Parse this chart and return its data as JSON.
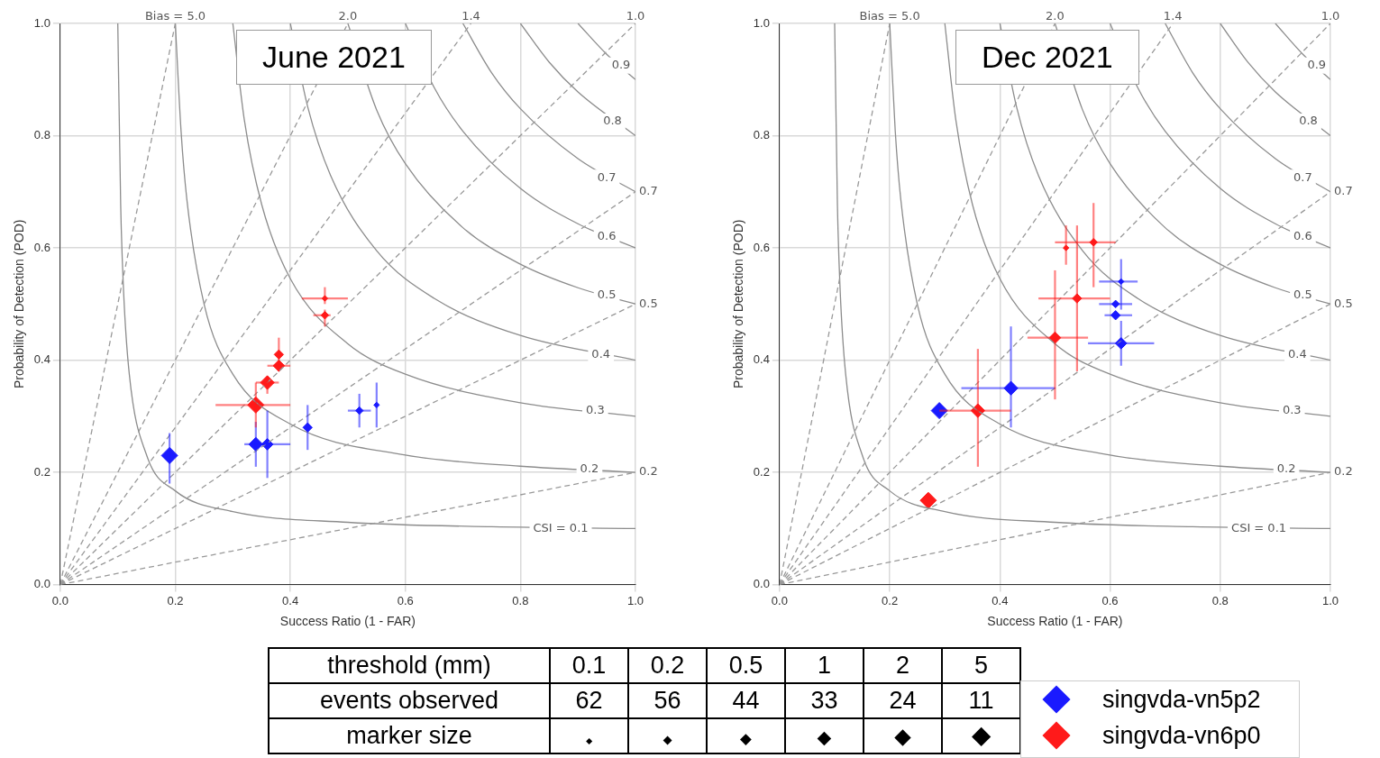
{
  "chart_data": [
    {
      "type": "bubble",
      "title": "June 2021",
      "xlabel": "Success Ratio (1 - FAR)",
      "ylabel": "Probability of Detection (POD)",
      "xlim": [
        0,
        1
      ],
      "ylim": [
        0,
        1
      ],
      "xticks": [
        {
          "value": 0,
          "label": "0.0"
        },
        {
          "value": 0.2,
          "label": "0.2"
        },
        {
          "value": 0.4,
          "label": "0.4"
        },
        {
          "value": 0.6,
          "label": "0.6"
        },
        {
          "value": 0.8,
          "label": "0.8"
        },
        {
          "value": 1,
          "label": "1.0"
        }
      ],
      "yticks": [
        {
          "value": 0,
          "label": "0.0"
        },
        {
          "value": 0.2,
          "label": "0.2"
        },
        {
          "value": 0.4,
          "label": "0.4"
        },
        {
          "value": 0.6,
          "label": "0.6"
        },
        {
          "value": 0.8,
          "label": "0.8"
        },
        {
          "value": 1,
          "label": "1.0"
        }
      ],
      "grid": true,
      "legend": "bottom",
      "series": [
        {
          "type": "line",
          "color": "#999999",
          "line_style": "dashed",
          "x": [
            0,
            1
          ],
          "values": [
            0,
            0.2
          ]
        },
        {
          "type": "line",
          "color": "#999999",
          "line_style": "dashed",
          "x": [
            0,
            1
          ],
          "values": [
            0,
            0.5
          ]
        },
        {
          "type": "line",
          "color": "#999999",
          "line_style": "dashed",
          "x": [
            0,
            1
          ],
          "values": [
            0,
            0.7
          ]
        },
        {
          "type": "line",
          "color": "#999999",
          "line_style": "dashed",
          "x": [
            0,
            1
          ],
          "values": [
            0,
            1
          ]
        },
        {
          "type": "line",
          "color": "#999999",
          "line_style": "dashed",
          "x": [
            0,
            0.714
          ],
          "values": [
            0,
            1
          ]
        },
        {
          "type": "line",
          "color": "#999999",
          "line_style": "dashed",
          "x": [
            0,
            0.5
          ],
          "values": [
            0,
            1
          ]
        },
        {
          "type": "line",
          "color": "#999999",
          "line_style": "dashed",
          "x": [
            0,
            0.2
          ],
          "values": [
            0,
            1
          ]
        },
        {
          "type": "line",
          "color": "#8c8c8c",
          "line_style": "solid",
          "x": [
            0.1,
            0.105,
            0.11,
            0.12,
            0.15,
            0.2,
            0.3,
            0.5,
            0.75,
            1
          ],
          "values": [
            1,
            0.678,
            0.524,
            0.375,
            0.231,
            0.167,
            0.13,
            0.111,
            0.103,
            0.1
          ]
        },
        {
          "type": "line",
          "color": "#8c8c8c",
          "line_style": "solid",
          "x": [
            0.2,
            0.21,
            0.22,
            0.25,
            0.3,
            0.4,
            0.6,
            0.8,
            1
          ],
          "values": [
            1,
            0.808,
            0.687,
            0.5,
            0.375,
            0.286,
            0.231,
            0.211,
            0.2
          ]
        },
        {
          "type": "line",
          "color": "#8c8c8c",
          "line_style": "solid",
          "x": [
            0.3,
            0.32,
            0.35,
            0.4,
            0.5,
            0.6,
            0.8,
            1
          ],
          "values": [
            1,
            0.828,
            0.678,
            0.545,
            0.429,
            0.375,
            0.324,
            0.3
          ]
        },
        {
          "type": "line",
          "color": "#8c8c8c",
          "line_style": "solid",
          "x": [
            0.4,
            0.43,
            0.47,
            0.55,
            0.65,
            0.8,
            1
          ],
          "values": [
            1,
            0.852,
            0.729,
            0.595,
            0.51,
            0.444,
            0.4
          ]
        },
        {
          "type": "line",
          "color": "#8c8c8c",
          "line_style": "solid",
          "x": [
            0.5,
            0.55,
            0.6,
            0.7,
            0.8,
            0.9,
            1
          ],
          "values": [
            1,
            0.846,
            0.75,
            0.636,
            0.571,
            0.529,
            0.5
          ]
        },
        {
          "type": "line",
          "color": "#8c8c8c",
          "line_style": "solid",
          "x": [
            0.6,
            0.65,
            0.7,
            0.8,
            0.9,
            1
          ],
          "values": [
            1,
            0.886,
            0.808,
            0.706,
            0.643,
            0.6
          ]
        },
        {
          "type": "line",
          "color": "#8c8c8c",
          "line_style": "solid",
          "x": [
            0.7,
            0.75,
            0.8,
            0.9,
            1
          ],
          "values": [
            1,
            0.912,
            0.848,
            0.759,
            0.7
          ]
        },
        {
          "type": "line",
          "color": "#8c8c8c",
          "line_style": "solid",
          "x": [
            0.8,
            0.85,
            0.9,
            1
          ],
          "values": [
            1,
            0.931,
            0.878,
            0.8
          ]
        },
        {
          "type": "line",
          "color": "#8c8c8c",
          "line_style": "solid",
          "x": [
            0.9,
            0.95,
            1
          ],
          "values": [
            1,
            0.945,
            0.9
          ]
        },
        {
          "name": "singvda-vn5p2",
          "color": "#1a1aff",
          "marker": "diamond",
          "x": [
            0.55,
            0.52,
            0.43,
            0.36,
            0.34,
            0.19
          ],
          "values": [
            0.32,
            0.31,
            0.28,
            0.25,
            0.25,
            0.23
          ],
          "sizes": [
            0.12,
            0.22,
            0.33,
            0.5,
            0.72,
            1
          ],
          "errors": [
            [
              0.28,
              0.36
            ],
            [
              0.28,
              0.34
            ],
            [
              0.24,
              0.32
            ],
            [
              0.19,
              0.31
            ],
            [
              0.21,
              0.29
            ],
            [
              0.18,
              0.27
            ]
          ],
          "xerrors": [
            null,
            [
              0.5,
              0.54
            ],
            null,
            [
              0.32,
              0.4
            ],
            null,
            null
          ]
        },
        {
          "name": "singvda-vn6p0",
          "color": "#ff1a1a",
          "marker": "diamond",
          "x": [
            0.46,
            0.46,
            0.38,
            0.38,
            0.36,
            0.34
          ],
          "values": [
            0.51,
            0.48,
            0.41,
            0.39,
            0.36,
            0.32
          ],
          "sizes": [
            0.12,
            0.22,
            0.33,
            0.5,
            0.72,
            1
          ],
          "errors": [
            [
              0.5,
              0.53
            ],
            [
              0.46,
              0.49
            ],
            [
              0.39,
              0.44
            ],
            null,
            [
              0.34,
              0.37
            ],
            [
              0.28,
              0.36
            ]
          ],
          "xerrors": [
            [
              0.42,
              0.5
            ],
            [
              0.44,
              0.47
            ],
            null,
            [
              0.36,
              0.4
            ],
            [
              0.34,
              0.38
            ],
            [
              0.27,
              0.4
            ]
          ]
        }
      ],
      "annotations": [
        {
          "text": "Bias = 5.0",
          "x": 0.2,
          "y": 1
        },
        {
          "text": "2.0",
          "x": 0.5,
          "y": 1
        },
        {
          "text": "1.4",
          "x": 0.714,
          "y": 1
        },
        {
          "text": "1.0",
          "x": 1,
          "y": 1
        },
        {
          "text": "0.7",
          "x": 1,
          "y": 0.7
        },
        {
          "text": "0.5",
          "x": 1,
          "y": 0.5
        },
        {
          "text": "0.2",
          "x": 1,
          "y": 0.2
        },
        {
          "text": "CSI = 0.1",
          "x": 0.87,
          "y": 0.1
        },
        {
          "text": "0.2",
          "x": 0.92,
          "y": 0.205
        },
        {
          "text": "0.3",
          "x": 0.93,
          "y": 0.31
        },
        {
          "text": "0.4",
          "x": 0.94,
          "y": 0.41
        },
        {
          "text": "0.5",
          "x": 0.95,
          "y": 0.515
        },
        {
          "text": "0.6",
          "x": 0.95,
          "y": 0.62
        },
        {
          "text": "0.7",
          "x": 0.95,
          "y": 0.725
        },
        {
          "text": "0.8",
          "x": 0.96,
          "y": 0.825
        },
        {
          "text": "0.9",
          "x": 0.975,
          "y": 0.925
        }
      ]
    },
    {
      "type": "bubble",
      "title": "Dec 2021",
      "xlabel": "Success Ratio (1 - FAR)",
      "ylabel": "Probability of Detection (POD)",
      "xlim": [
        0,
        1
      ],
      "ylim": [
        0,
        1
      ],
      "xticks": [
        {
          "value": 0,
          "label": "0.0"
        },
        {
          "value": 0.2,
          "label": "0.2"
        },
        {
          "value": 0.4,
          "label": "0.4"
        },
        {
          "value": 0.6,
          "label": "0.6"
        },
        {
          "value": 0.8,
          "label": "0.8"
        },
        {
          "value": 1,
          "label": "1.0"
        }
      ],
      "yticks": [
        {
          "value": 0,
          "label": "0.0"
        },
        {
          "value": 0.2,
          "label": "0.2"
        },
        {
          "value": 0.4,
          "label": "0.4"
        },
        {
          "value": 0.6,
          "label": "0.6"
        },
        {
          "value": 0.8,
          "label": "0.8"
        },
        {
          "value": 1,
          "label": "1.0"
        }
      ],
      "grid": true,
      "series": [
        {
          "type": "line",
          "color": "#999999",
          "line_style": "dashed",
          "x": [
            0,
            1
          ],
          "values": [
            0,
            0.2
          ]
        },
        {
          "type": "line",
          "color": "#999999",
          "line_style": "dashed",
          "x": [
            0,
            1
          ],
          "values": [
            0,
            0.5
          ]
        },
        {
          "type": "line",
          "color": "#999999",
          "line_style": "dashed",
          "x": [
            0,
            1
          ],
          "values": [
            0,
            0.7
          ]
        },
        {
          "type": "line",
          "color": "#999999",
          "line_style": "dashed",
          "x": [
            0,
            1
          ],
          "values": [
            0,
            1
          ]
        },
        {
          "type": "line",
          "color": "#999999",
          "line_style": "dashed",
          "x": [
            0,
            0.714
          ],
          "values": [
            0,
            1
          ]
        },
        {
          "type": "line",
          "color": "#999999",
          "line_style": "dashed",
          "x": [
            0,
            0.5
          ],
          "values": [
            0,
            1
          ]
        },
        {
          "type": "line",
          "color": "#999999",
          "line_style": "dashed",
          "x": [
            0,
            0.2
          ],
          "values": [
            0,
            1
          ]
        },
        {
          "type": "line",
          "color": "#8c8c8c",
          "line_style": "solid",
          "x": [
            0.1,
            0.105,
            0.11,
            0.12,
            0.15,
            0.2,
            0.3,
            0.5,
            0.75,
            1
          ],
          "values": [
            1,
            0.678,
            0.524,
            0.375,
            0.231,
            0.167,
            0.13,
            0.111,
            0.103,
            0.1
          ]
        },
        {
          "type": "line",
          "color": "#8c8c8c",
          "line_style": "solid",
          "x": [
            0.2,
            0.21,
            0.22,
            0.25,
            0.3,
            0.4,
            0.6,
            0.8,
            1
          ],
          "values": [
            1,
            0.808,
            0.687,
            0.5,
            0.375,
            0.286,
            0.231,
            0.211,
            0.2
          ]
        },
        {
          "type": "line",
          "color": "#8c8c8c",
          "line_style": "solid",
          "x": [
            0.3,
            0.32,
            0.35,
            0.4,
            0.5,
            0.6,
            0.8,
            1
          ],
          "values": [
            1,
            0.828,
            0.678,
            0.545,
            0.429,
            0.375,
            0.324,
            0.3
          ]
        },
        {
          "type": "line",
          "color": "#8c8c8c",
          "line_style": "solid",
          "x": [
            0.4,
            0.43,
            0.47,
            0.55,
            0.65,
            0.8,
            1
          ],
          "values": [
            1,
            0.852,
            0.729,
            0.595,
            0.51,
            0.444,
            0.4
          ]
        },
        {
          "type": "line",
          "color": "#8c8c8c",
          "line_style": "solid",
          "x": [
            0.5,
            0.55,
            0.6,
            0.7,
            0.8,
            0.9,
            1
          ],
          "values": [
            1,
            0.846,
            0.75,
            0.636,
            0.571,
            0.529,
            0.5
          ]
        },
        {
          "type": "line",
          "color": "#8c8c8c",
          "line_style": "solid",
          "x": [
            0.6,
            0.65,
            0.7,
            0.8,
            0.9,
            1
          ],
          "values": [
            1,
            0.886,
            0.808,
            0.706,
            0.643,
            0.6
          ]
        },
        {
          "type": "line",
          "color": "#8c8c8c",
          "line_style": "solid",
          "x": [
            0.7,
            0.75,
            0.8,
            0.9,
            1
          ],
          "values": [
            1,
            0.912,
            0.848,
            0.759,
            0.7
          ]
        },
        {
          "type": "line",
          "color": "#8c8c8c",
          "line_style": "solid",
          "x": [
            0.8,
            0.85,
            0.9,
            1
          ],
          "values": [
            1,
            0.931,
            0.878,
            0.8
          ]
        },
        {
          "type": "line",
          "color": "#8c8c8c",
          "line_style": "solid",
          "x": [
            0.9,
            0.95,
            1
          ],
          "values": [
            1,
            0.945,
            0.9
          ]
        },
        {
          "color": "#1a1aff",
          "marker": "diamond",
          "x": [
            0.62,
            0.61,
            0.61,
            0.62,
            0.42,
            0.29
          ],
          "values": [
            0.54,
            0.5,
            0.48,
            0.43,
            0.35,
            0.31
          ],
          "sizes": [
            0.12,
            0.22,
            0.33,
            0.5,
            0.72,
            1
          ],
          "errors": [
            [
              0.49,
              0.58
            ],
            null,
            null,
            [
              0.39,
              0.47
            ],
            [
              0.28,
              0.46
            ],
            null
          ],
          "xerrors": [
            [
              0.58,
              0.65
            ],
            [
              0.58,
              0.64
            ],
            [
              0.59,
              0.64
            ],
            [
              0.56,
              0.68
            ],
            [
              0.33,
              0.5
            ],
            null
          ]
        },
        {
          "color": "#ff1a1a",
          "marker": "diamond",
          "x": [
            0.52,
            0.57,
            0.54,
            0.5,
            0.36,
            0.27
          ],
          "values": [
            0.6,
            0.61,
            0.51,
            0.44,
            0.31,
            0.15
          ],
          "sizes": [
            0.12,
            0.22,
            0.33,
            0.5,
            0.72,
            1
          ],
          "errors": [
            [
              0.57,
              0.64
            ],
            [
              0.53,
              0.68
            ],
            [
              0.38,
              0.64
            ],
            [
              0.33,
              0.56
            ],
            [
              0.21,
              0.42
            ],
            null
          ],
          "xerrors": [
            null,
            [
              0.5,
              0.61
            ],
            [
              0.47,
              0.6
            ],
            [
              0.45,
              0.56
            ],
            [
              0.29,
              0.42
            ],
            null
          ]
        }
      ],
      "annotations": [
        {
          "text": "Bias = 5.0",
          "x": 0.2,
          "y": 1
        },
        {
          "text": "2.0",
          "x": 0.5,
          "y": 1
        },
        {
          "text": "1.4",
          "x": 0.714,
          "y": 1
        },
        {
          "text": "1.0",
          "x": 1,
          "y": 1
        },
        {
          "text": "0.7",
          "x": 1,
          "y": 0.7
        },
        {
          "text": "0.5",
          "x": 1,
          "y": 0.5
        },
        {
          "text": "0.2",
          "x": 1,
          "y": 0.2
        },
        {
          "text": "CSI = 0.1",
          "x": 0.87,
          "y": 0.1
        },
        {
          "text": "0.2",
          "x": 0.92,
          "y": 0.205
        },
        {
          "text": "0.3",
          "x": 0.93,
          "y": 0.31
        },
        {
          "text": "0.4",
          "x": 0.94,
          "y": 0.41
        },
        {
          "text": "0.5",
          "x": 0.95,
          "y": 0.515
        },
        {
          "text": "0.6",
          "x": 0.95,
          "y": 0.62
        },
        {
          "text": "0.7",
          "x": 0.95,
          "y": 0.725
        },
        {
          "text": "0.8",
          "x": 0.96,
          "y": 0.825
        },
        {
          "text": "0.9",
          "x": 0.975,
          "y": 0.925
        }
      ]
    },
    {
      "type": "other",
      "categories": [
        "0.1",
        "0.2",
        "0.5",
        "1",
        "2",
        "5"
      ],
      "values": [
        62,
        56,
        44,
        33,
        24,
        11
      ],
      "data_labels": true,
      "annotations": [
        "threshold (mm)",
        "events observed",
        "marker size"
      ]
    }
  ]
}
